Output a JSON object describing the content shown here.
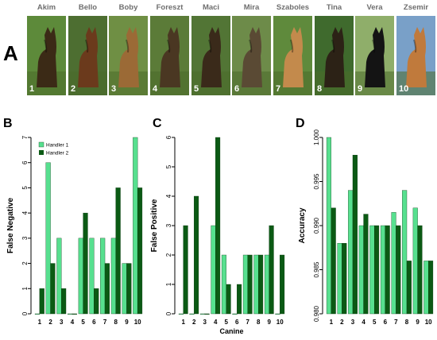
{
  "panel_a": {
    "letter": "A",
    "dogs": [
      {
        "name": "Akim",
        "number": "1",
        "coat": "#3b2a16",
        "bg": "#5d8a3a"
      },
      {
        "name": "Bello",
        "number": "2",
        "coat": "#6b3a1c",
        "bg": "#4d6e31"
      },
      {
        "name": "Boby",
        "number": "3",
        "coat": "#9b6a36",
        "bg": "#6f8f44"
      },
      {
        "name": "Foreszt",
        "number": "4",
        "coat": "#4a3722",
        "bg": "#5b7b38"
      },
      {
        "name": "Maci",
        "number": "5",
        "coat": "#3a2a1a",
        "bg": "#527535"
      },
      {
        "name": "Mira",
        "number": "6",
        "coat": "#5a4a34",
        "bg": "#6d8b49"
      },
      {
        "name": "Szaboles",
        "number": "7",
        "coat": "#c38a4c",
        "bg": "#5f8a3c"
      },
      {
        "name": "Tina",
        "number": "8",
        "coat": "#2c2216",
        "bg": "#3f6a2d"
      },
      {
        "name": "Vera",
        "number": "9",
        "coat": "#141414",
        "bg": "#8fae6a"
      },
      {
        "name": "Zsemir",
        "number": "10",
        "coat": "#c07a3c",
        "bg": "#79a0c8"
      }
    ]
  },
  "colors": {
    "handler1": "#57e08f",
    "handler2": "#0b5a14"
  },
  "chart_data": [
    {
      "panel": "B",
      "type": "bar",
      "categories": [
        "1",
        "2",
        "3",
        "4",
        "5",
        "6",
        "7",
        "8",
        "9",
        "10"
      ],
      "series": [
        {
          "name": "Handler 1",
          "values": [
            0,
            6,
            3,
            0,
            3,
            3,
            3,
            3,
            2,
            7
          ]
        },
        {
          "name": "Handler 2",
          "values": [
            1,
            2,
            1,
            0,
            4,
            1,
            2,
            5,
            2,
            5
          ]
        }
      ],
      "xlabel": "",
      "ylabel": "False Negative",
      "ylim": [
        0,
        7
      ],
      "yticks": [
        "0",
        "1",
        "2",
        "3",
        "4",
        "5",
        "6",
        "7"
      ],
      "legend": "top-left",
      "grid": false
    },
    {
      "panel": "C",
      "type": "bar",
      "categories": [
        "1",
        "2",
        "3",
        "4",
        "5",
        "6",
        "7",
        "8",
        "9",
        "10"
      ],
      "series": [
        {
          "values": [
            0,
            0,
            0,
            3,
            2,
            0,
            2,
            2,
            2,
            0
          ]
        },
        {
          "values": [
            3,
            4,
            0,
            6,
            1,
            1,
            2,
            2,
            3,
            2
          ]
        }
      ],
      "xlabel": "Canine",
      "ylabel": "False Positive",
      "ylim": [
        0,
        6
      ],
      "yticks": [
        "0",
        "1",
        "2",
        "3",
        "4",
        "5",
        "6"
      ],
      "grid": false
    },
    {
      "panel": "D",
      "type": "bar",
      "categories": [
        "1",
        "2",
        "3",
        "4",
        "5",
        "6",
        "7",
        "8",
        "9",
        "10"
      ],
      "series": [
        {
          "values": [
            1.0,
            0.988,
            0.994,
            0.99,
            0.99,
            0.99,
            0.9915,
            0.994,
            0.992,
            0.986
          ]
        },
        {
          "values": [
            0.992,
            0.988,
            0.998,
            0.9913,
            0.99,
            0.99,
            0.99,
            0.986,
            0.99,
            0.986
          ]
        }
      ],
      "xlabel": "",
      "ylabel": "Accuracy",
      "ylim": [
        0.98,
        1.0
      ],
      "yticks": [
        "0.980",
        "0.985",
        "0.990",
        "0.995",
        "1.000"
      ],
      "grid": false
    }
  ]
}
